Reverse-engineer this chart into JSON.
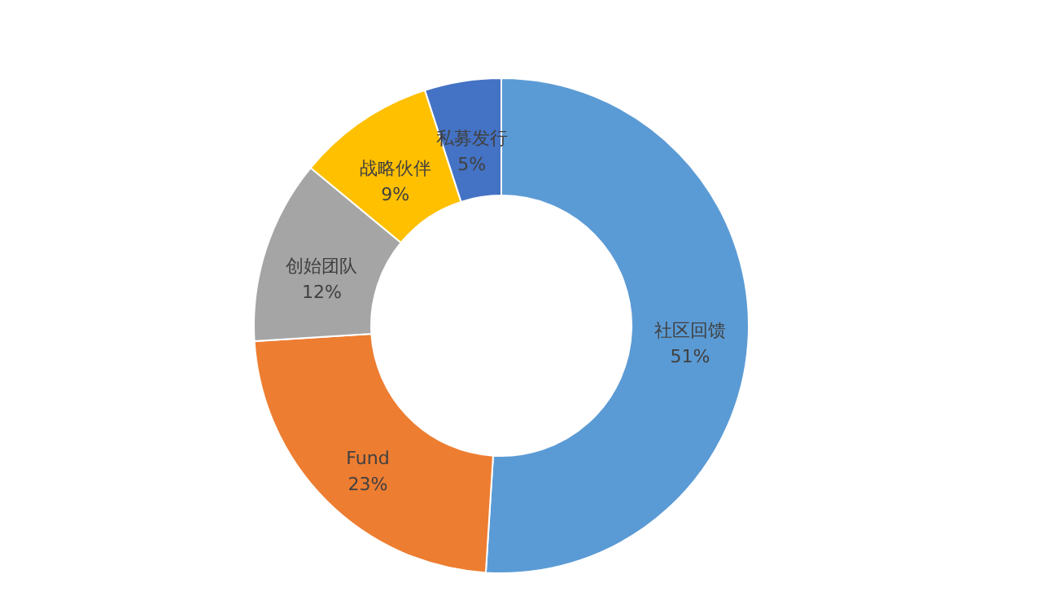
{
  "chart_data": {
    "type": "donut",
    "categories": [
      "社区回馈",
      "Fund",
      "创始团队",
      "战略伙伴",
      "私募发行"
    ],
    "values": [
      51,
      23,
      12,
      9,
      5
    ],
    "colors": [
      "#5b9bd5",
      "#ed7d31",
      "#a5a5a5",
      "#ffc000",
      "#4472c4"
    ],
    "value_labels": [
      "51%",
      "23%",
      "12%",
      "9%",
      "5%"
    ]
  }
}
